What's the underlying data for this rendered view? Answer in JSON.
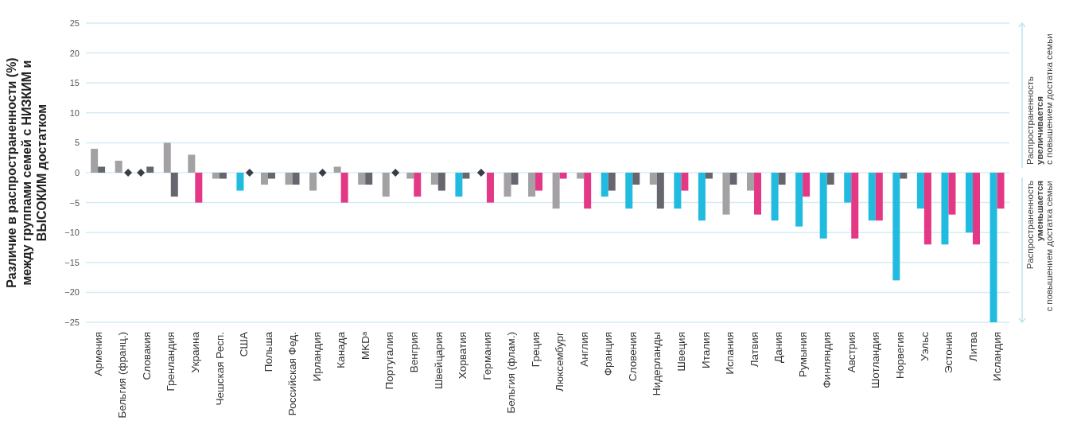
{
  "chart_data": {
    "type": "bar",
    "ylabel": "Различие в распространенности (%) между группами семей с НИЗКИМ и ВЫСОКИМ достатком",
    "categories": [
      "Армения",
      "Бельгия (франц.)",
      "Словакия",
      "Гренландия",
      "Украина",
      "Чешская Респ.",
      "США",
      "Польша",
      "Российская Фед.",
      "Ирландия",
      "Канада",
      "MKDᵃ",
      "Португалия",
      "Венгрия",
      "Швейцария",
      "Хорватия",
      "Германия",
      "Бельгия (флам.)",
      "Греция",
      "Люксембург",
      "Англия",
      "Франция",
      "Словения",
      "Нидерланды",
      "Швеция",
      "Италия",
      "Испания",
      "Латвия",
      "Дания",
      "Румыния",
      "Финляндия",
      "Австрия",
      "Шотландия",
      "Норвегия",
      "Уэльс",
      "Эстония",
      "Литва",
      "Исландия"
    ],
    "series": [
      {
        "values": [
          4,
          2,
          0,
          5,
          3,
          -1,
          -3,
          -2,
          -2,
          -3,
          1,
          -2,
          -4,
          -1,
          -2,
          -4,
          0,
          -4,
          -4,
          -6,
          -1,
          -4,
          -6,
          -2,
          -6,
          -8,
          -7,
          -3,
          -8,
          -9,
          -11,
          -5,
          -8,
          -18,
          -6,
          -12,
          -10,
          -25
        ],
        "colors": [
          "#a3a1a4",
          "#a3a1a4",
          "#a3a1a4",
          "#a3a1a4",
          "#a3a1a4",
          "#a3a1a4",
          "#22bbe0",
          "#a3a1a4",
          "#a3a1a4",
          "#a3a1a4",
          "#a3a1a4",
          "#a3a1a4",
          "#a3a1a4",
          "#a3a1a4",
          "#a3a1a4",
          "#22bbe0",
          "#a3a1a4",
          "#a3a1a4",
          "#a3a1a4",
          "#a3a1a4",
          "#a3a1a4",
          "#22bbe0",
          "#22bbe0",
          "#a3a1a4",
          "#22bbe0",
          "#22bbe0",
          "#a3a1a4",
          "#a3a1a4",
          "#22bbe0",
          "#22bbe0",
          "#22bbe0",
          "#22bbe0",
          "#22bbe0",
          "#22bbe0",
          "#22bbe0",
          "#22bbe0",
          "#22bbe0",
          "#22bbe0"
        ]
      },
      {
        "values": [
          1,
          0,
          1,
          -4,
          -5,
          -1,
          0,
          -1,
          -2,
          0,
          -5,
          -2,
          0,
          -4,
          -3,
          -1,
          -5,
          -2,
          -3,
          -1,
          -6,
          -3,
          -2,
          -6,
          -3,
          -1,
          -2,
          -7,
          -2,
          -4,
          -2,
          -11,
          -8,
          -1,
          -12,
          -7,
          -12,
          -6
        ],
        "colors": [
          "#67656e",
          "#67656e",
          "#67656e",
          "#67656e",
          "#e43785",
          "#67656e",
          "#67656e",
          "#67656e",
          "#67656e",
          "#67656e",
          "#e43785",
          "#67656e",
          "#67656e",
          "#e43785",
          "#67656e",
          "#67656e",
          "#e43785",
          "#67656e",
          "#e43785",
          "#e43785",
          "#e43785",
          "#67656e",
          "#67656e",
          "#67656e",
          "#e43785",
          "#67656e",
          "#67656e",
          "#e43785",
          "#67656e",
          "#e43785",
          "#67656e",
          "#e43785",
          "#e43785",
          "#67656e",
          "#e43785",
          "#e43785",
          "#e43785",
          "#e43785"
        ]
      },
      {
        "type": "scatter",
        "x": [
          "Бельгия (франц.)",
          "Словакия",
          "США",
          "Ирландия",
          "Португалия",
          "Германия"
        ],
        "values": [
          0,
          0,
          0,
          0,
          0,
          0
        ],
        "color": "#3a3d47"
      }
    ],
    "ylim": [
      -25,
      25
    ],
    "yticks": [
      25,
      20,
      15,
      10,
      5,
      0,
      -5,
      -10,
      -15,
      -20,
      -25
    ],
    "grid": "y",
    "marker": "diamond",
    "annotations": [
      "Распространенность\nувеличивается\nс повышением достатка семьи",
      "Распространенность\nуменьшается\nс повышением достатка семьи"
    ]
  }
}
